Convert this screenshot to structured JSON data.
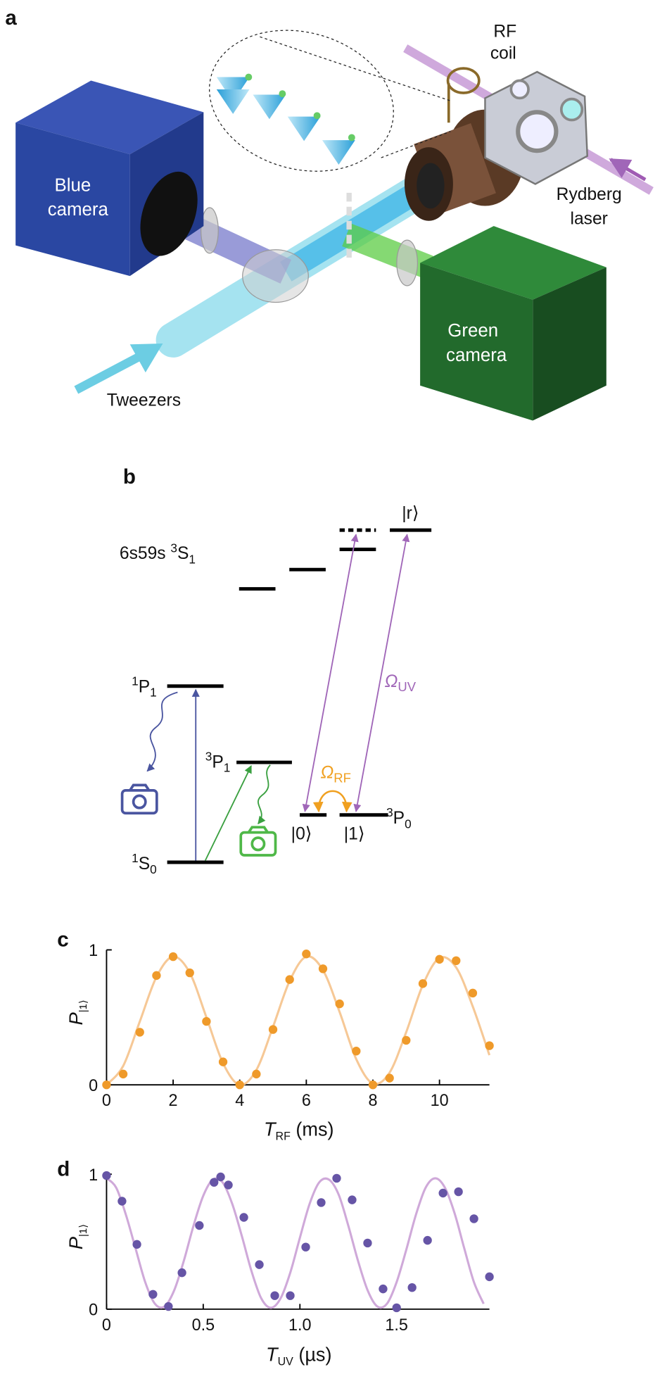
{
  "panel_labels": [
    "a",
    "b",
    "c",
    "d"
  ],
  "panel_a": {
    "blue_camera": [
      "Blue",
      "camera"
    ],
    "green_camera": [
      "Green",
      "camera"
    ],
    "rf_coil": [
      "RF",
      "coil"
    ],
    "rydberg_laser": [
      "Rydberg",
      "laser"
    ],
    "tweezers": "Tweezers"
  },
  "panel_b": {
    "rydberg_level": {
      "config": "6s59s",
      "sup": "3",
      "term": "S",
      "sub": "1"
    },
    "level_1P1": {
      "sup": "1",
      "term": "P",
      "sub": "1"
    },
    "level_3P1": {
      "sup": "3",
      "term": "P",
      "sub": "1"
    },
    "level_1S0": {
      "sup": "1",
      "term": "S",
      "sub": "0"
    },
    "level_3P0": {
      "sup": "3",
      "term": "P",
      "sub": "0"
    },
    "state_r": "|r⟩",
    "state_0": "|0⟩",
    "state_1": "|1⟩",
    "omega_uv": {
      "symbol": "Ω",
      "sub": "UV"
    },
    "omega_rf": {
      "symbol": "Ω",
      "sub": "RF"
    }
  },
  "chart_data": [
    {
      "type": "scatter",
      "x_label": {
        "symbol": "T",
        "sub": "RF",
        "unit": " (ms)"
      },
      "y_label": {
        "symbol": "P",
        "sub": "|1⟩"
      },
      "xlim": [
        0,
        11.5
      ],
      "xticks": [
        0,
        2,
        4,
        6,
        8,
        10
      ],
      "ylim": [
        0,
        1
      ],
      "yticks": [
        0,
        1
      ],
      "series": [
        {
          "color": "#f6c896",
          "style": "line",
          "x": [
            0,
            0.5,
            1,
            1.5,
            2,
            2.5,
            3,
            3.5,
            4,
            4.5,
            5,
            5.5,
            6,
            6.5,
            7,
            7.5,
            8,
            8.5,
            9,
            9.5,
            10,
            10.5,
            11,
            11.5
          ],
          "values": [
            0,
            0.14,
            0.47,
            0.8,
            0.95,
            0.83,
            0.5,
            0.16,
            0,
            0.11,
            0.43,
            0.77,
            0.95,
            0.85,
            0.54,
            0.19,
            0.01,
            0.09,
            0.39,
            0.74,
            0.94,
            0.87,
            0.58,
            0.22
          ]
        },
        {
          "color": "#ef9a2a",
          "style": "points",
          "x": [
            0,
            0.5,
            1,
            1.5,
            2,
            2.5,
            3,
            3.5,
            4,
            4.5,
            5,
            5.5,
            6,
            6.5,
            7,
            7.5,
            8,
            8.5,
            9,
            9.5,
            10,
            10.5,
            11,
            11.5
          ],
          "values": [
            0,
            0.08,
            0.39,
            0.81,
            0.95,
            0.83,
            0.47,
            0.17,
            0,
            0.08,
            0.41,
            0.78,
            0.97,
            0.86,
            0.6,
            0.25,
            0,
            0.05,
            0.33,
            0.75,
            0.93,
            0.92,
            0.68,
            0.29
          ]
        }
      ]
    },
    {
      "type": "scatter",
      "x_label": {
        "symbol": "T",
        "sub": "UV",
        "unit": " (µs)"
      },
      "y_label": {
        "symbol": "P",
        "sub": "|1⟩"
      },
      "xlim": [
        0,
        1.98
      ],
      "xticks": [
        0,
        0.5,
        {
          "value": 1,
          "label": "1.0"
        },
        1.5
      ],
      "ylim": [
        0,
        1
      ],
      "yticks": [
        0,
        1
      ],
      "series": [
        {
          "color": "#cfa9d9",
          "style": "line",
          "x": [
            0,
            0.05,
            0.1,
            0.15,
            0.2,
            0.25,
            0.3,
            0.35,
            0.4,
            0.45,
            0.5,
            0.55,
            0.6,
            0.65,
            0.7,
            0.75,
            0.8,
            0.85,
            0.9,
            0.95,
            1,
            1.05,
            1.1,
            1.15,
            1.2,
            1.25,
            1.3,
            1.35,
            1.4,
            1.45,
            1.5,
            1.55,
            1.6,
            1.65,
            1.7,
            1.75,
            1.8,
            1.85,
            1.9,
            1.95
          ],
          "values": [
            0.97,
            0.9,
            0.7,
            0.45,
            0.2,
            0.04,
            0.02,
            0.14,
            0.36,
            0.62,
            0.84,
            0.96,
            0.94,
            0.78,
            0.54,
            0.28,
            0.08,
            0.01,
            0.08,
            0.27,
            0.53,
            0.78,
            0.94,
            0.96,
            0.85,
            0.62,
            0.36,
            0.14,
            0.02,
            0.04,
            0.2,
            0.44,
            0.7,
            0.9,
            0.97,
            0.9,
            0.71,
            0.45,
            0.2,
            0.04
          ]
        },
        {
          "color": "#6655a6",
          "style": "points",
          "x": [
            0,
            0.08,
            0.157,
            0.24,
            0.32,
            0.39,
            0.48,
            0.556,
            0.59,
            0.63,
            0.71,
            0.79,
            0.87,
            0.95,
            1.03,
            1.11,
            1.19,
            1.27,
            1.35,
            1.43,
            1.5,
            1.58,
            1.66,
            1.74,
            1.82,
            1.9,
            1.98
          ],
          "values": [
            0.99,
            0.8,
            0.48,
            0.11,
            0.02,
            0.27,
            0.62,
            0.94,
            0.98,
            0.92,
            0.68,
            0.33,
            0.1,
            0.1,
            0.46,
            0.79,
            0.97,
            0.81,
            0.49,
            0.15,
            0.01,
            0.16,
            0.51,
            0.86,
            0.87,
            0.67,
            0.24
          ]
        }
      ]
    }
  ]
}
